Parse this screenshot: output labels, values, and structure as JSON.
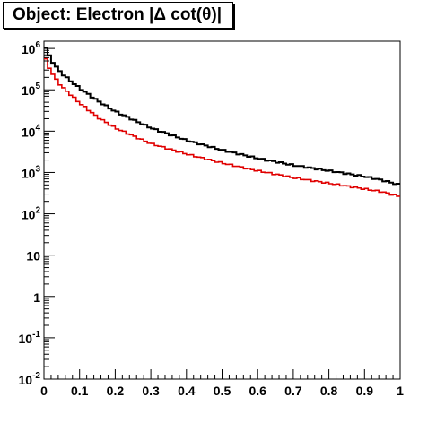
{
  "title": "Object: Electron |Δ cot(θ)|",
  "chart_data": {
    "type": "line",
    "title": "Object: Electron |Δ cot(θ)|",
    "xlabel": "",
    "ylabel": "",
    "xlim": [
      0,
      1
    ],
    "ylim": [
      0.01,
      1500000
    ],
    "yscale": "log",
    "grid": false,
    "x_ticks": [
      "0",
      "0.1",
      "0.2",
      "0.3",
      "0.4",
      "0.5",
      "0.6",
      "0.7",
      "0.8",
      "0.9",
      "1"
    ],
    "y_ticks": [
      {
        "base": "10",
        "exp": "-2",
        "value": 0.01
      },
      {
        "base": "10",
        "exp": "-1",
        "value": 0.1
      },
      {
        "base": "1",
        "exp": "",
        "value": 1
      },
      {
        "base": "10",
        "exp": "",
        "value": 10
      },
      {
        "base": "10",
        "exp": "2",
        "value": 100
      },
      {
        "base": "10",
        "exp": "3",
        "value": 1000
      },
      {
        "base": "10",
        "exp": "4",
        "value": 10000
      },
      {
        "base": "10",
        "exp": "5",
        "value": 100000
      },
      {
        "base": "10",
        "exp": "6",
        "value": 1000000
      }
    ],
    "series": [
      {
        "color": "#000000",
        "x": [
          0.0,
          0.01,
          0.02,
          0.03,
          0.05,
          0.08,
          0.1,
          0.15,
          0.2,
          0.3,
          0.4,
          0.5,
          0.6,
          0.7,
          0.8,
          0.9,
          0.95,
          1.0
        ],
        "values": [
          1400000,
          800000,
          550000,
          400000,
          250000,
          150000,
          110000,
          55000,
          30000,
          12000,
          6000,
          3500,
          2200,
          1500,
          1100,
          800,
          650,
          500
        ]
      },
      {
        "color": "#e00000",
        "x": [
          0.0,
          0.01,
          0.02,
          0.03,
          0.05,
          0.08,
          0.1,
          0.15,
          0.2,
          0.3,
          0.4,
          0.5,
          0.6,
          0.7,
          0.8,
          0.9,
          0.95,
          1.0
        ],
        "values": [
          700000,
          420000,
          280000,
          200000,
          120000,
          70000,
          48000,
          22000,
          12000,
          5000,
          2800,
          1700,
          1100,
          750,
          550,
          400,
          340,
          260
        ]
      }
    ]
  }
}
